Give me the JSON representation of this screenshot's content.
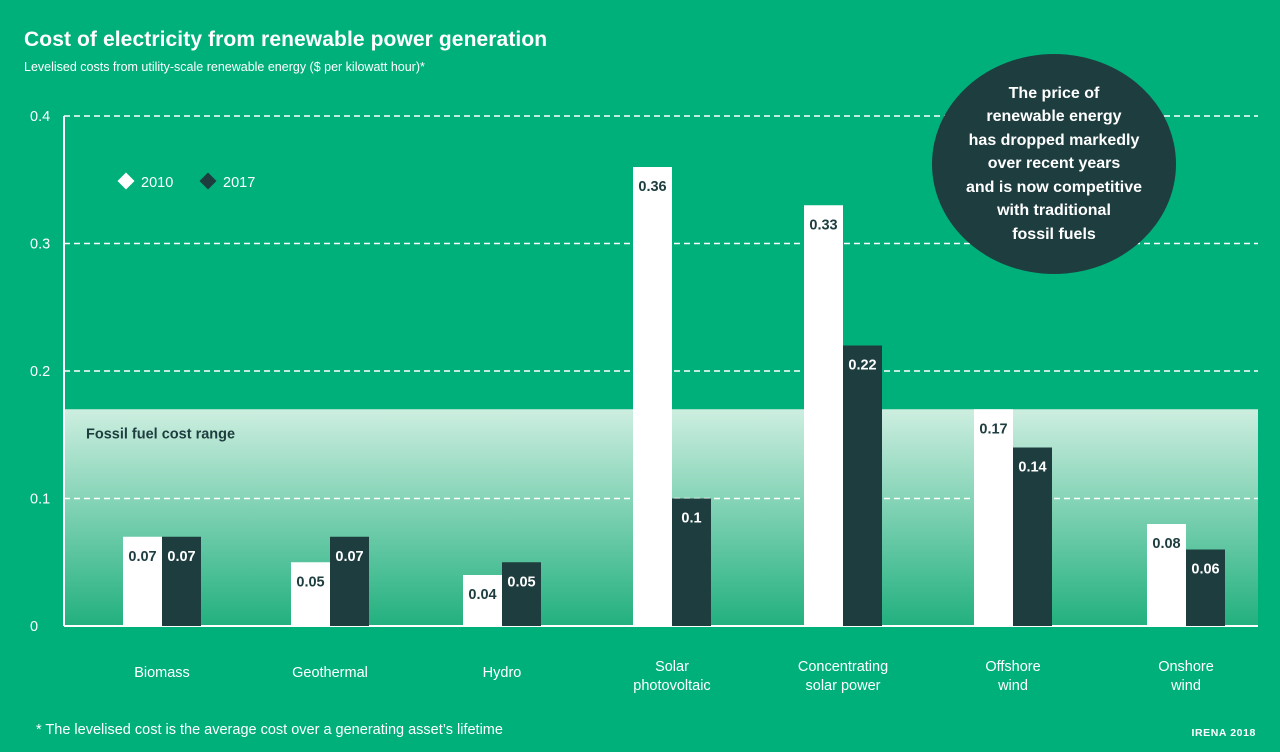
{
  "header": {
    "title": "Cost of electricity from renewable power generation",
    "subtitle": "Levelised costs from utility-scale renewable energy ($ per kilowatt hour)*"
  },
  "callout": {
    "text": "The price of\nrenewable energy\nhas dropped markedly\nover recent years\nand is now competitive\nwith traditional\nfossil fuels"
  },
  "footer": {
    "footnote": "* The levelised cost is the average cost over a generating asset’s lifetime",
    "source": "IRENA 2018"
  },
  "colors": {
    "background": "#00b07a",
    "series_2010": "#ffffff",
    "series_2017": "#1e3d3f",
    "band_top": "#cdeee0",
    "band_bottom": "#22b07e"
  },
  "chart_data": {
    "type": "bar",
    "categories": [
      [
        "Biomass"
      ],
      [
        "Geothermal"
      ],
      [
        "Hydro"
      ],
      [
        "Solar",
        "photovoltaic"
      ],
      [
        "Concentrating",
        "solar  power"
      ],
      [
        "Offshore",
        "wind"
      ],
      [
        "Onshore",
        "wind"
      ]
    ],
    "series": [
      {
        "name": "2010",
        "values": [
          0.07,
          0.05,
          0.04,
          0.36,
          0.33,
          0.17,
          0.08
        ],
        "labels": [
          "0.07",
          "0.05",
          "0.04",
          "0.36",
          "0.33",
          "0.17",
          "0.08"
        ]
      },
      {
        "name": "2017",
        "values": [
          0.07,
          0.07,
          0.05,
          0.1,
          0.22,
          0.14,
          0.06
        ],
        "labels": [
          "0.07",
          "0.07",
          "0.05",
          "0.1",
          "0.22",
          "0.14",
          "0.06"
        ]
      }
    ],
    "yticks": [
      {
        "value": 0,
        "label": "0"
      },
      {
        "value": 0.1,
        "label": "0.1"
      },
      {
        "value": 0.2,
        "label": "0.2"
      },
      {
        "value": 0.3,
        "label": "0.3"
      },
      {
        "value": 0.4,
        "label": "0.4"
      }
    ],
    "ylim": [
      0,
      0.4
    ],
    "band": {
      "label": "Fossil fuel cost range",
      "min": 0.0,
      "max": 0.17
    },
    "legend_position": "top-left",
    "grid": true
  }
}
